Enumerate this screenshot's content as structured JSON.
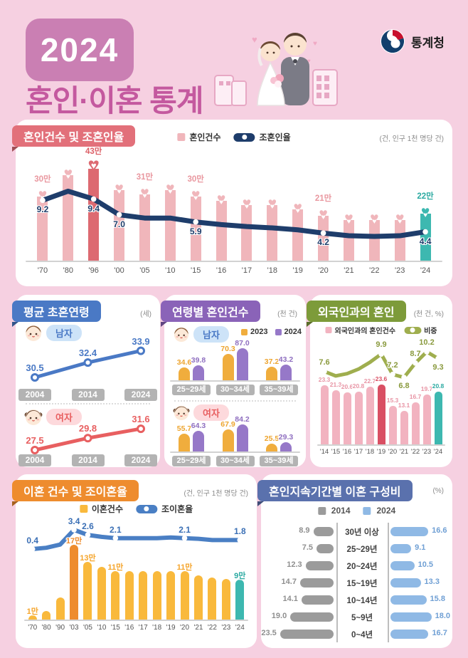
{
  "header": {
    "year": "2024",
    "title": "혼인·이혼 통계",
    "agency": "통계청"
  },
  "p1": {
    "title": "혼인건수 및 조혼인율",
    "unit": "(건, 인구 1천 명당 건)",
    "legend_bars": "혼인건수",
    "legend_line": "조혼인율"
  },
  "p2": {
    "title": "평균 초혼연령",
    "unit": "(세)",
    "male": "남자",
    "female": "여자"
  },
  "p3": {
    "title": "연령별 혼인건수",
    "unit": "(천 건)",
    "legend_2023": "2023",
    "legend_2024": "2024",
    "male": "남자",
    "female": "여자"
  },
  "p4": {
    "title": "외국인과의 혼인",
    "unit": "(천 건, %)",
    "legend_bars": "외국인과의 혼인건수",
    "legend_line": "비중"
  },
  "p5": {
    "title": "이혼 건수 및 조이혼율",
    "unit": "(건, 인구 1천 명당 건)",
    "legend_bars": "이혼건수",
    "legend_line": "조이혼율"
  },
  "p6": {
    "title": "혼인지속기간별 이혼 구성비",
    "unit": "(%)",
    "legend_2014": "2014",
    "legend_2024": "2024"
  },
  "chart_data": [
    {
      "id": "marriage_trend",
      "type": "bar+line",
      "title": "혼인건수 및 조혼인율",
      "unit": "건, 인구 1천 명당 건",
      "categories": [
        "'70",
        "'80",
        "'96",
        "'00",
        "'05",
        "'10",
        "'15",
        "'16",
        "'17",
        "'18",
        "'19",
        "'20",
        "'21",
        "'22",
        "'23",
        "'24"
      ],
      "bars": {
        "name": "혼인건수",
        "unit": "만 건",
        "values": [
          30,
          40,
          43,
          33,
          31,
          33,
          30,
          28,
          26,
          26,
          24,
          21,
          19,
          19,
          19,
          22
        ],
        "labels": {
          "0": "30만",
          "2": "43만",
          "4": "31만",
          "6": "30만",
          "11": "21만",
          "15": "22만"
        },
        "highlight_index": 2,
        "accent_index": 15
      },
      "line": {
        "name": "조혼인율",
        "values": [
          9.2,
          10.6,
          9.4,
          7.0,
          6.5,
          6.5,
          5.9,
          5.5,
          5.2,
          5.0,
          4.7,
          4.2,
          3.8,
          3.7,
          3.8,
          4.4
        ],
        "labels": {
          "0": "9.2",
          "2": "9.4",
          "3": "7.0",
          "6": "5.9",
          "11": "4.2",
          "15": "4.4"
        }
      }
    },
    {
      "id": "first_marriage_age",
      "type": "line",
      "title": "평균 초혼연령",
      "unit": "세",
      "x": [
        "2004",
        "2014",
        "2024"
      ],
      "series": [
        {
          "name": "남자",
          "values": [
            30.5,
            32.4,
            33.9
          ]
        },
        {
          "name": "여자",
          "values": [
            27.5,
            29.8,
            31.6
          ]
        }
      ]
    },
    {
      "id": "marriage_by_age",
      "type": "grouped-bar",
      "title": "연령별 혼인건수",
      "unit": "천 건",
      "series_names": [
        "2023",
        "2024"
      ],
      "groups": [
        {
          "name": "남자",
          "categories": [
            "25~29세",
            "30~34세",
            "35~39세"
          ],
          "v2023": [
            34.6,
            70.3,
            37.2
          ],
          "v2024": [
            39.8,
            87.0,
            43.2
          ]
        },
        {
          "name": "여자",
          "categories": [
            "25~29세",
            "30~34세",
            "35~39세"
          ],
          "v2023": [
            55.7,
            67.9,
            25.5
          ],
          "v2024": [
            64.3,
            84.2,
            29.3
          ]
        }
      ]
    },
    {
      "id": "foreign_marriage",
      "type": "bar+line",
      "title": "외국인과의 혼인",
      "unit": "천 건, %",
      "categories": [
        "'14",
        "'15",
        "'16",
        "'17",
        "'18",
        "'19",
        "'20",
        "'21",
        "'22",
        "'23",
        "'24"
      ],
      "bars": {
        "name": "외국인과의 혼인건수",
        "values": [
          23.3,
          21.3,
          20.6,
          20.8,
          22.7,
          23.6,
          15.3,
          13.1,
          16.7,
          19.7,
          20.8
        ],
        "labels": {
          "0": "23.3",
          "1": "21.3",
          "2": "20.6",
          "3": "20.8",
          "4": "22.7",
          "5": "23.6",
          "6": "15.3",
          "7": "13.1",
          "8": "16.7",
          "9": "19.7",
          "10": "20.8"
        },
        "highlight_index": 5,
        "accent_index": 10
      },
      "line": {
        "name": "비중",
        "values": [
          7.6,
          7.0,
          7.3,
          7.9,
          8.8,
          9.9,
          7.2,
          6.8,
          8.7,
          10.2,
          9.3
        ],
        "labels": {
          "0": "7.6",
          "5": "9.9",
          "6": "7.2",
          "7": "6.8",
          "8": "8.7",
          "9": "10.2",
          "10": "9.3"
        }
      }
    },
    {
      "id": "divorce_trend",
      "type": "bar+line",
      "title": "이혼 건수 및 조이혼율",
      "unit": "건, 인구 1천 명당 건",
      "categories": [
        "'70",
        "'80",
        "'90",
        "'03",
        "'05",
        "'10",
        "'15",
        "'16",
        "'17",
        "'18",
        "'19",
        "'20",
        "'21",
        "'22",
        "'23",
        "'24"
      ],
      "bars": {
        "name": "이혼건수",
        "values": [
          1,
          2,
          5,
          17,
          13,
          12,
          11,
          11,
          11,
          11,
          11,
          11,
          10,
          9.5,
          9.2,
          9
        ],
        "labels": {
          "0": "1만",
          "3": "17만",
          "4": "13만",
          "6": "11만",
          "11": "11만",
          "15": "9만"
        },
        "highlight_index": 3,
        "accent_index": 15
      },
      "line": {
        "name": "조이혼율",
        "values": [
          0.4,
          0.6,
          1.1,
          3.4,
          2.6,
          2.3,
          2.1,
          2.1,
          2.1,
          2.1,
          2.2,
          2.1,
          2.0,
          1.8,
          1.8,
          1.8
        ],
        "labels": {
          "0": "0.4",
          "3": "3.4",
          "4": "2.6",
          "6": "2.1",
          "11": "2.1",
          "15": "1.8"
        }
      }
    },
    {
      "id": "divorce_by_duration",
      "type": "butterfly",
      "title": "혼인지속기간별 이혼 구성비",
      "unit": "%",
      "categories": [
        "30년 이상",
        "25~29년",
        "20~24년",
        "15~19년",
        "10~14년",
        "5~9년",
        "0~4년"
      ],
      "series": [
        {
          "name": "2014",
          "values": [
            8.9,
            7.5,
            12.3,
            14.7,
            14.1,
            19.0,
            23.5
          ]
        },
        {
          "name": "2024",
          "values": [
            16.6,
            9.1,
            10.5,
            13.3,
            15.8,
            18.0,
            16.7
          ]
        }
      ]
    }
  ],
  "colors": {
    "page_bg": "#f6d0e1",
    "card_bg": "#ffffff",
    "header_pink": "#c4599f",
    "year_box": "#ca7fb3",
    "badge_p1": "#e2707a",
    "badge_p2": "#4a79c5",
    "badge_p3": "#8a63b8",
    "badge_p4": "#7d9b3a",
    "badge_p5": "#ee8c2e",
    "badge_p6": "#5a71ad",
    "marriage_bar": "#f0b6bb",
    "marriage_highlight": "#dd6a71",
    "accent_teal": "#3db8b0",
    "marriage_line_navy": "#1e3d6b",
    "male_blue": "#4a79c5",
    "female_red": "#e85f60",
    "male_pill_bg": "#cde3f8",
    "female_pill_bg": "#fdd9dc",
    "bar_2023_orange": "#f0ad3d",
    "bar_2024_purple": "#9678c8",
    "foreign_bar_pink": "#f2b3c0",
    "foreign_highlight": "#d94f63",
    "foreign_line_olive": "#9fae4e",
    "divorce_bar_yellow": "#f9b93c",
    "divorce_highlight": "#ee8c2e",
    "divorce_line_blue": "#4a7fc4",
    "bar_2014_gray": "#9b9b9b",
    "bar_2024_blue": "#8fb9e5",
    "year_box_gray": "#b3b3b3"
  }
}
